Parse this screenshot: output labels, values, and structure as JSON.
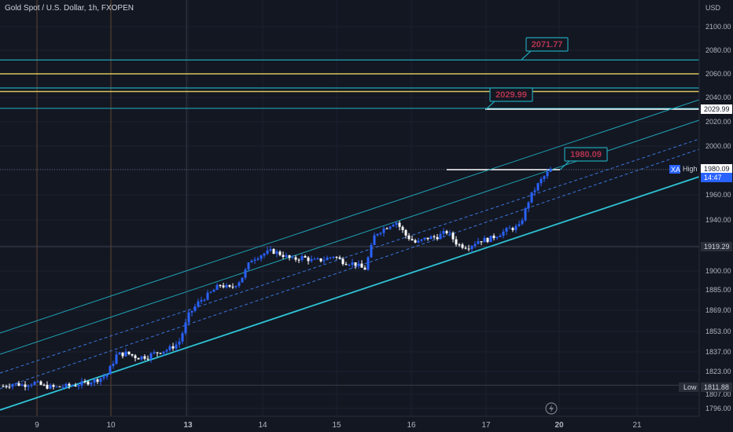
{
  "header": {
    "title": "Gold Spot / U.S. Dollar, 1h, FXOPEN"
  },
  "colors": {
    "background": "#131722",
    "grid": "#1e2230",
    "bull": "#2962ff",
    "bear": "#ffffff",
    "channel": "#1fa2b3",
    "channel_bright": "#2ec4d6",
    "dashed": "#3a74d8",
    "resistance_cyan": "#1fa2b3",
    "resistance_yellow": "#d9c55a",
    "callout_text": "#b2334f",
    "session_line": "#6b4a2e"
  },
  "chart_data": {
    "type": "candlestick",
    "title": "Gold Spot / U.S. Dollar, 1h, FXOPEN",
    "currency": "USD",
    "y_scale": "log",
    "ylim": [
      1792,
      2112
    ],
    "grid": true,
    "y_ticks": [
      "2100.00",
      "2080.00",
      "2060.00",
      "2040.00",
      "2020.00",
      "2000.00",
      "1980.00",
      "1960.00",
      "1940.00",
      "1920.00",
      "1900.00",
      "1885.00",
      "1869.00",
      "1853.00",
      "1837.00",
      "1823.00",
      "1807.00",
      "1796.00"
    ],
    "x_ticks": [
      "9",
      "10",
      "13",
      "14",
      "15",
      "16",
      "17",
      "20",
      "21"
    ],
    "price_labels": [
      {
        "label": "",
        "value": "2029.99",
        "style": "white"
      },
      {
        "label": "High",
        "value": "1980.09",
        "style": "white"
      },
      {
        "label": "",
        "value": "14:47",
        "style": "blue"
      },
      {
        "label": "",
        "value": "1919.29",
        "style": "dark"
      },
      {
        "label": "Low",
        "value": "1811.88",
        "style": "dark"
      }
    ],
    "xa_tag": "XA",
    "horizontal_levels": [
      {
        "value": 2071.77,
        "color": "cyan"
      },
      {
        "value": 2060.0,
        "color": "yellow"
      },
      {
        "value": 2048.0,
        "color": "cyan"
      },
      {
        "value": 2045.0,
        "color": "yellow"
      },
      {
        "value": 2031.0,
        "color": "cyan"
      },
      {
        "value": 1919.29,
        "color": "dark"
      },
      {
        "value": 1811.88,
        "color": "dark"
      }
    ],
    "callouts": [
      "2071.77",
      "2029.99",
      "1980.09"
    ],
    "ohlc_close_path": [
      1811,
      1813,
      1812,
      1814,
      1811,
      1810,
      1811,
      1812,
      1814,
      1816,
      1820,
      1835,
      1836,
      1833,
      1834,
      1837,
      1839,
      1844,
      1866,
      1876,
      1882,
      1889,
      1886,
      1893,
      1909,
      1913,
      1916,
      1913,
      1909,
      1911,
      1908,
      1909,
      1912,
      1907,
      1906,
      1901,
      1929,
      1934,
      1939,
      1928,
      1922,
      1926,
      1927,
      1931,
      1921,
      1919,
      1924,
      1925,
      1929,
      1933,
      1935,
      1958,
      1971,
      1980
    ]
  }
}
